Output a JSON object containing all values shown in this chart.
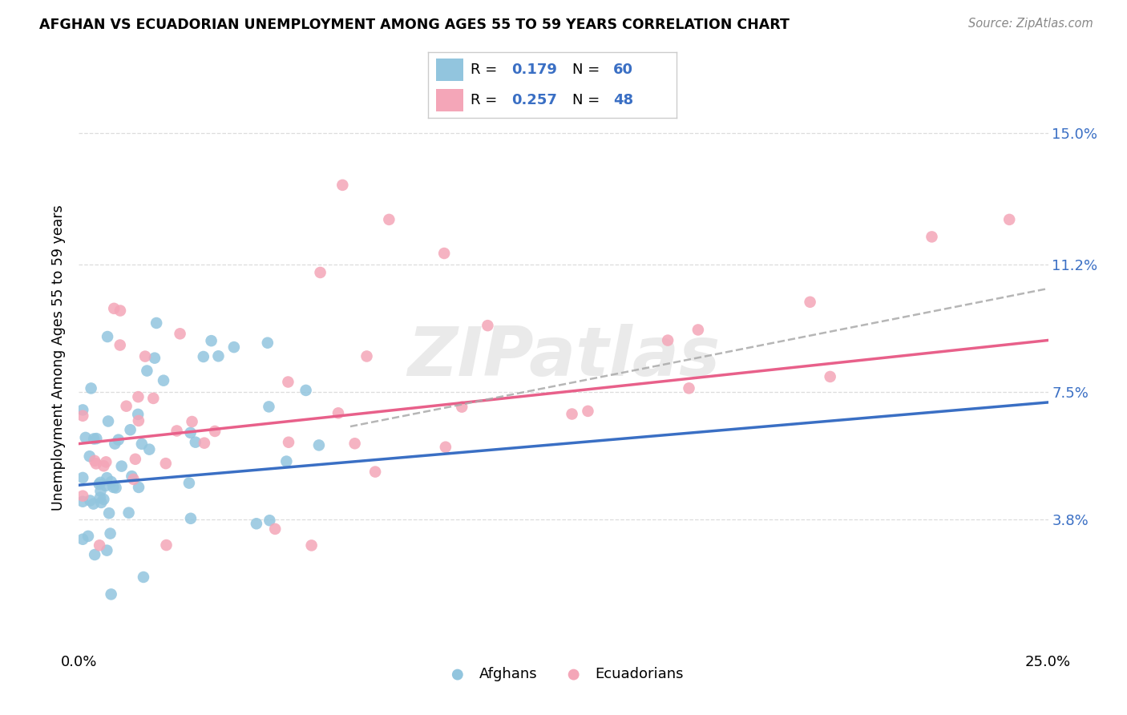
{
  "title": "AFGHAN VS ECUADORIAN UNEMPLOYMENT AMONG AGES 55 TO 59 YEARS CORRELATION CHART",
  "source": "Source: ZipAtlas.com",
  "ylabel": "Unemployment Among Ages 55 to 59 years",
  "xlim": [
    0.0,
    0.25
  ],
  "ylim": [
    0.0,
    0.17
  ],
  "xtick_positions": [
    0.0,
    0.05,
    0.1,
    0.15,
    0.2,
    0.25
  ],
  "xticklabels": [
    "0.0%",
    "",
    "",
    "",
    "",
    "25.0%"
  ],
  "ytick_positions": [
    0.038,
    0.075,
    0.112,
    0.15
  ],
  "ytick_labels": [
    "3.8%",
    "7.5%",
    "11.2%",
    "15.0%"
  ],
  "afghan_R": "0.179",
  "afghan_N": "60",
  "ecuadorian_R": "0.257",
  "ecuadorian_N": "48",
  "afghan_color": "#92C5DE",
  "ecuadorian_color": "#F4A6B8",
  "afghan_line_color": "#3A6FC4",
  "ecuadorian_line_color": "#E8608A",
  "dash_color": "#AAAAAA",
  "value_color": "#3A6FC4",
  "watermark_color": "#CCCCCC",
  "background_color": "#ffffff",
  "grid_color": "#DDDDDD",
  "afghan_line_y0": 0.048,
  "afghan_line_y1": 0.072,
  "ecuadorian_line_y0": 0.06,
  "ecuadorian_line_y1": 0.09,
  "dash_line_x0": 0.07,
  "dash_line_y0": 0.065,
  "dash_line_x1": 0.25,
  "dash_line_y1": 0.105
}
